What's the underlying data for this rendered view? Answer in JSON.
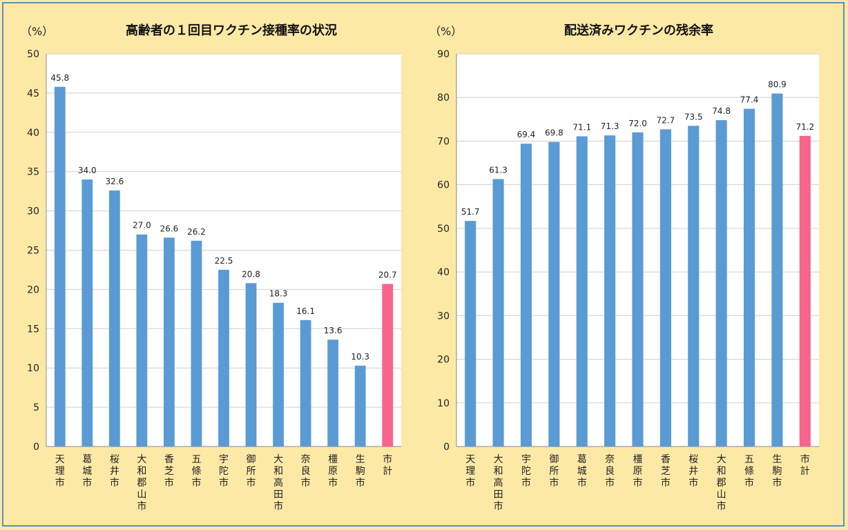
{
  "chart_data": [
    {
      "type": "bar",
      "title": "高齢者の１回目ワクチン接種率の状況",
      "unit": "（%）",
      "ylim": [
        0,
        50
      ],
      "yticks": [
        0,
        5,
        10,
        15,
        20,
        25,
        30,
        35,
        40,
        45,
        50
      ],
      "categories": [
        "天理市",
        "葛城市",
        "桜井市",
        "大和郡山市",
        "香芝市",
        "五條市",
        "宇陀市",
        "御所市",
        "大和高田市",
        "奈良市",
        "橿原市",
        "生駒市",
        "市計"
      ],
      "values": [
        45.8,
        34.0,
        32.6,
        27.0,
        26.6,
        26.2,
        22.5,
        20.8,
        18.3,
        16.1,
        13.6,
        10.3,
        20.7
      ],
      "value_labels": [
        "45.8",
        "34.0",
        "32.6",
        "27.0",
        "26.6",
        "26.2",
        "22.5",
        "20.8",
        "18.3",
        "16.1",
        "13.6",
        "10.3",
        "20.7"
      ],
      "bar_color": "#5b9bd5",
      "highlight_color": "#f7658d",
      "highlight_index": 12,
      "grid": true
    },
    {
      "type": "bar",
      "title": "配送済みワクチンの残余率",
      "unit": "（%）",
      "ylim": [
        0,
        90
      ],
      "yticks": [
        0,
        10,
        20,
        30,
        40,
        50,
        60,
        70,
        80,
        90
      ],
      "categories": [
        "天理市",
        "大和高田市",
        "宇陀市",
        "御所市",
        "葛城市",
        "奈良市",
        "橿原市",
        "香芝市",
        "桜井市",
        "大和郡山市",
        "五條市",
        "生駒市",
        "市計"
      ],
      "values": [
        51.7,
        61.3,
        69.4,
        69.8,
        71.1,
        71.3,
        72.0,
        72.7,
        73.5,
        74.8,
        77.4,
        80.9,
        71.2
      ],
      "value_labels": [
        "51.7",
        "61.3",
        "69.4",
        "69.8",
        "71.1",
        "71.3",
        "72.0",
        "72.7",
        "73.5",
        "74.8",
        "77.4",
        "80.9",
        "71.2"
      ],
      "bar_color": "#5b9bd5",
      "highlight_color": "#f7658d",
      "highlight_index": 12,
      "grid": true
    }
  ]
}
